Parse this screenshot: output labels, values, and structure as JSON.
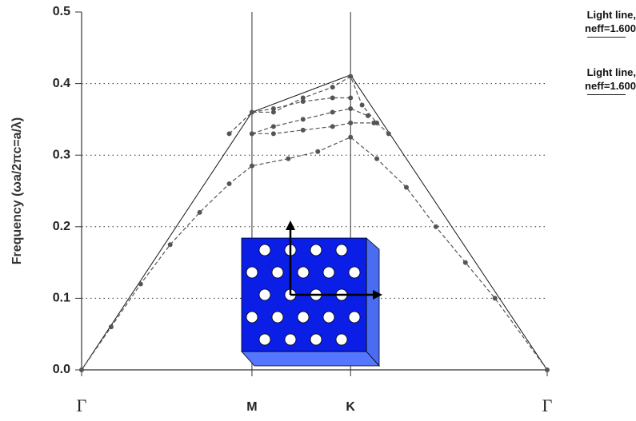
{
  "chart_data": {
    "type": "line",
    "y_label": "Frequency (ωa/2πc=a/λ)",
    "xlim": [
      0,
      1.577
    ],
    "xticks": [
      {
        "value": 0,
        "label": "Γ"
      },
      {
        "value": 0.577,
        "label": "M"
      },
      {
        "value": 0.911,
        "label": "K"
      },
      {
        "value": 1.577,
        "label": "Γ"
      }
    ],
    "ylim": [
      0,
      0.5
    ],
    "yticks": [
      {
        "value": 0,
        "label": "0.0"
      },
      0.1,
      0.2,
      0.3,
      0.4,
      0.5
    ],
    "grid": true,
    "legend": "right",
    "series": [
      {
        "name": "Light line, neff=1.600",
        "color": "#222222",
        "linestyle": "solid",
        "marker": "none",
        "x": [
          0,
          0.577,
          0.911,
          1.577
        ],
        "values": [
          0,
          0.36,
          0.412,
          0
        ]
      },
      {
        "name": "Light line, neff=1.600",
        "color": "#222222",
        "linestyle": "solid",
        "marker": "none",
        "x": [
          0,
          0.577,
          0.911,
          1.577
        ],
        "values": [
          0,
          0.36,
          0.412,
          0
        ]
      },
      {
        "color": "#555555",
        "linestyle": "dashed",
        "marker": "circle",
        "x": [
          0,
          0.1,
          0.2,
          0.3,
          0.4,
          0.5,
          0.577,
          0.7,
          0.8,
          0.911,
          1.0,
          1.1,
          1.2,
          1.3,
          1.4,
          1.577
        ],
        "values": [
          0,
          0.06,
          0.12,
          0.175,
          0.22,
          0.26,
          0.285,
          0.295,
          0.305,
          0.325,
          0.295,
          0.255,
          0.2,
          0.15,
          0.1,
          0
        ]
      },
      {
        "color": "#555555",
        "linestyle": "dashed",
        "marker": "circle",
        "x": [
          0.577,
          0.65,
          0.75,
          0.85,
          0.911,
          0.99
        ],
        "values": [
          0.33,
          0.33,
          0.335,
          0.34,
          0.345,
          0.345
        ]
      },
      {
        "color": "#555555",
        "linestyle": "dashed",
        "marker": "circle",
        "x": [
          0.577,
          0.65,
          0.75,
          0.85,
          0.911,
          0.97
        ],
        "values": [
          0.33,
          0.34,
          0.35,
          0.36,
          0.365,
          0.355
        ]
      },
      {
        "color": "#555555",
        "linestyle": "dashed",
        "marker": "circle",
        "x": [
          0.577,
          0.65,
          0.75,
          0.85,
          0.911
        ],
        "values": [
          0.36,
          0.365,
          0.375,
          0.38,
          0.38
        ]
      },
      {
        "color": "#555555",
        "linestyle": "dashed",
        "marker": "circle",
        "x": [
          0.5,
          0.577,
          0.65,
          0.75,
          0.85,
          0.911,
          0.95,
          1.0,
          1.04
        ],
        "values": [
          0.33,
          0.36,
          0.36,
          0.38,
          0.395,
          0.41,
          0.37,
          0.345,
          0.33
        ]
      }
    ]
  }
}
